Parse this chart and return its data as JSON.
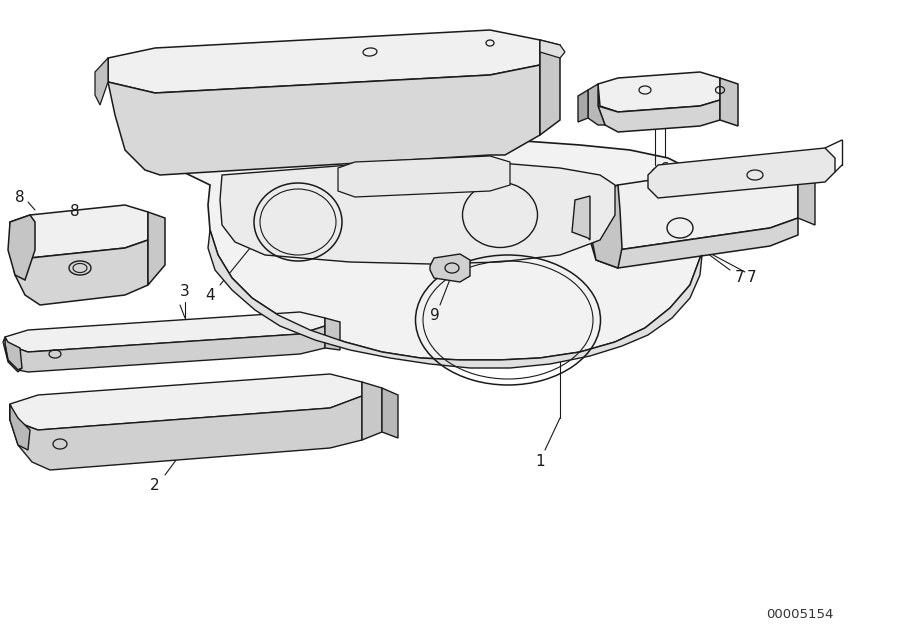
{
  "bg_color": "#ffffff",
  "line_color": "#1a1a1a",
  "diagram_id": "00005154",
  "figsize": [
    9.0,
    6.35
  ],
  "dpi": 100
}
